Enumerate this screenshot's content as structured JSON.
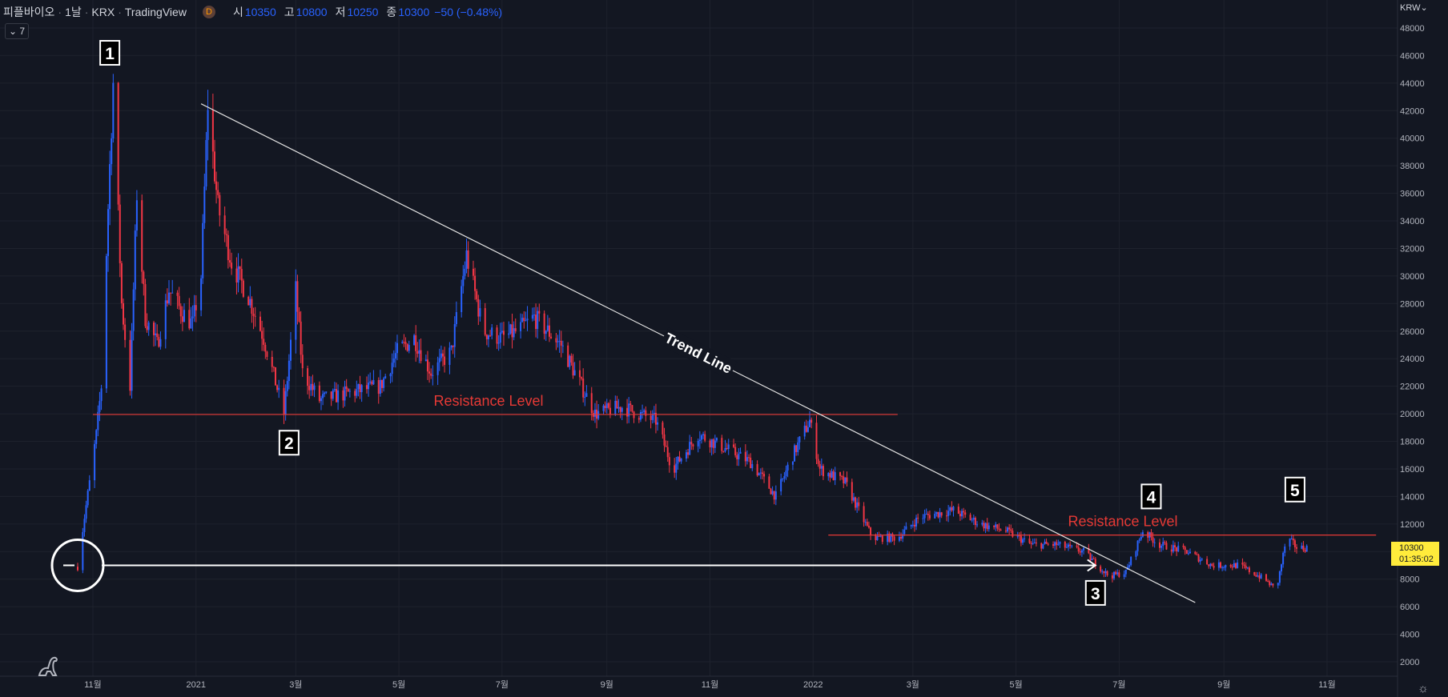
{
  "legend": {
    "symbol": "피플바이오",
    "interval": "1날",
    "exchange": "KRX",
    "source": "TradingView",
    "badge": "D",
    "open_label": "시",
    "open": "10350",
    "high_label": "고",
    "high": "10800",
    "low_label": "저",
    "low": "10250",
    "close_label": "종",
    "close": "10300",
    "change": "−50 (−0.48%)",
    "indicator_toggle": "⌄ 7"
  },
  "currency": "KRW",
  "currency_icon": "chevron-down-icon",
  "last_price": "10300",
  "countdown": "01:35:02",
  "colors": {
    "background": "#131722",
    "grid": "#1e222d",
    "up_candle": "#2962ff",
    "down_candle": "#f23645",
    "annotation_red": "#e53935",
    "trend_line": "#e0e0e0",
    "price_tag": "#ffeb3b"
  },
  "chart_data": {
    "type": "candlestick",
    "title": "",
    "symbol": "피플바이오",
    "ylim": [
      0,
      49000
    ],
    "y_ticks": [
      2000,
      4000,
      6000,
      8000,
      10000,
      12000,
      14000,
      16000,
      18000,
      20000,
      22000,
      24000,
      26000,
      28000,
      30000,
      32000,
      34000,
      36000,
      38000,
      40000,
      42000,
      44000,
      46000,
      48000
    ],
    "x_tick_labels": [
      "11월",
      "2021",
      "3월",
      "5월",
      "7월",
      "9월",
      "11월",
      "2022",
      "3월",
      "5월",
      "7월",
      "9월",
      "11월"
    ],
    "x_tick_dates": [
      "2020-11-01",
      "2021-01-01",
      "2021-03-01",
      "2021-05-01",
      "2021-07-01",
      "2021-09-01",
      "2021-11-01",
      "2022-01-01",
      "2022-03-01",
      "2022-05-01",
      "2022-07-01",
      "2022-09-01",
      "2022-11-01"
    ],
    "grid": true,
    "price_path": [
      [
        "2020-10-23",
        8900
      ],
      [
        "2020-10-27",
        12500
      ],
      [
        "2020-10-30",
        15000
      ],
      [
        "2020-11-03",
        18500
      ],
      [
        "2020-11-06",
        22000
      ],
      [
        "2020-11-10",
        35000
      ],
      [
        "2020-11-13",
        44000
      ],
      [
        "2020-11-18",
        28000
      ],
      [
        "2020-11-23",
        22000
      ],
      [
        "2020-11-27",
        36000
      ],
      [
        "2020-12-02",
        27000
      ],
      [
        "2020-12-09",
        25000
      ],
      [
        "2020-12-16",
        29000
      ],
      [
        "2020-12-23",
        27500
      ],
      [
        "2020-12-30",
        26500
      ],
      [
        "2021-01-04",
        30000
      ],
      [
        "2021-01-08",
        42500
      ],
      [
        "2021-01-14",
        35000
      ],
      [
        "2021-01-22",
        31000
      ],
      [
        "2021-02-01",
        28500
      ],
      [
        "2021-02-10",
        25500
      ],
      [
        "2021-02-22",
        20000
      ],
      [
        "2021-03-01",
        29000
      ],
      [
        "2021-03-05",
        23000
      ],
      [
        "2021-03-15",
        21000
      ],
      [
        "2021-04-01",
        21500
      ],
      [
        "2021-04-20",
        22000
      ],
      [
        "2021-04-30",
        24500
      ],
      [
        "2021-05-10",
        25500
      ],
      [
        "2021-05-20",
        23000
      ],
      [
        "2021-06-01",
        24500
      ],
      [
        "2021-06-10",
        31500
      ],
      [
        "2021-06-20",
        26000
      ],
      [
        "2021-07-01",
        25500
      ],
      [
        "2021-07-10",
        26000
      ],
      [
        "2021-07-20",
        27000
      ],
      [
        "2021-08-05",
        25000
      ],
      [
        "2021-08-25",
        20000
      ],
      [
        "2021-09-10",
        20500
      ],
      [
        "2021-09-30",
        19500
      ],
      [
        "2021-10-10",
        16000
      ],
      [
        "2021-10-25",
        18500
      ],
      [
        "2021-11-10",
        17500
      ],
      [
        "2021-11-25",
        16500
      ],
      [
        "2021-12-10",
        14000
      ],
      [
        "2021-12-20",
        17000
      ],
      [
        "2021-12-30",
        19500
      ],
      [
        "2022-01-05",
        16000
      ],
      [
        "2022-01-20",
        15000
      ],
      [
        "2022-02-05",
        11000
      ],
      [
        "2022-02-20",
        11000
      ],
      [
        "2022-03-05",
        12500
      ],
      [
        "2022-03-25",
        13000
      ],
      [
        "2022-04-10",
        12000
      ],
      [
        "2022-04-25",
        11500
      ],
      [
        "2022-05-10",
        10500
      ],
      [
        "2022-05-25",
        10500
      ],
      [
        "2022-06-10",
        10000
      ],
      [
        "2022-06-25",
        8200
      ],
      [
        "2022-07-05",
        8500
      ],
      [
        "2022-07-15",
        11500
      ],
      [
        "2022-07-25",
        10500
      ],
      [
        "2022-08-10",
        10000
      ],
      [
        "2022-08-25",
        9000
      ],
      [
        "2022-09-10",
        9000
      ],
      [
        "2022-09-25",
        8000
      ],
      [
        "2022-10-02",
        7200
      ],
      [
        "2022-10-08",
        11000
      ],
      [
        "2022-10-15",
        10200
      ],
      [
        "2022-10-20",
        10300
      ]
    ],
    "trend_line": {
      "label": "Trend Line",
      "from": [
        "2021-01-04",
        42500
      ],
      "to": [
        "2022-08-15",
        6300
      ]
    },
    "resistance_levels": [
      {
        "label": "Resistance Level",
        "value": 19950,
        "from": "2020-11-01",
        "to": "2022-02-20"
      },
      {
        "label": "Resistance Level",
        "value": 11200,
        "from": "2022-01-10",
        "to": "2022-11-30"
      }
    ],
    "markers": [
      {
        "label": "1",
        "date": "2020-11-11",
        "value": 46200
      },
      {
        "label": "2",
        "date": "2021-02-25",
        "value": 17900
      },
      {
        "label": "3",
        "date": "2022-06-17",
        "value": 7000
      },
      {
        "label": "4",
        "date": "2022-07-20",
        "value": 14000
      },
      {
        "label": "5",
        "date": "2022-10-13",
        "value": 14500
      }
    ],
    "circle_marker": {
      "date": "2020-10-23",
      "value": 9000
    },
    "arrow": {
      "from": [
        "2020-10-23",
        9000
      ],
      "to": [
        "2022-06-17",
        9000
      ]
    }
  }
}
